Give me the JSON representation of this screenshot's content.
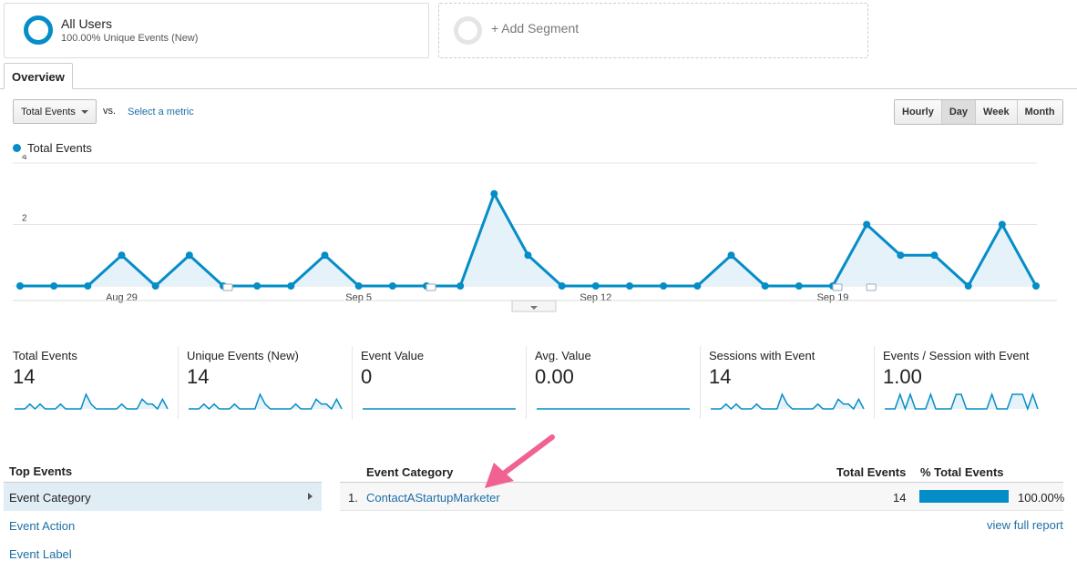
{
  "segments": {
    "all_users": {
      "title": "All Users",
      "subtitle": "100.00% Unique Events (New)"
    },
    "add_segment": {
      "label": "+ Add Segment"
    }
  },
  "tabs": [
    {
      "label": "Overview"
    }
  ],
  "controls": {
    "metric_select": "Total Events",
    "vs": "vs.",
    "select_metric": "Select a metric",
    "time_buttons": [
      "Hourly",
      "Day",
      "Week",
      "Month"
    ],
    "active_time": "Day"
  },
  "chart_data": {
    "type": "area",
    "series": [
      {
        "name": "Total Events",
        "values": [
          0,
          0,
          0,
          1,
          0,
          1,
          0,
          0,
          0,
          1,
          0,
          0,
          0,
          0,
          3,
          1,
          0,
          0,
          0,
          0,
          0,
          1,
          0,
          0,
          0,
          2,
          1,
          1,
          0,
          2,
          0
        ]
      }
    ],
    "x_tick_labels": [
      {
        "index": 3,
        "label": "Aug 29"
      },
      {
        "index": 10,
        "label": "Sep 5"
      },
      {
        "index": 17,
        "label": "Sep 12"
      },
      {
        "index": 24,
        "label": "Sep 19"
      }
    ],
    "y_tick_labels": [
      "2",
      "4"
    ],
    "ylim": [
      0,
      4
    ],
    "grid": true,
    "color": "#058dc7",
    "fill_color": "#e6f2f9",
    "annotation_indices": [
      6,
      12,
      24,
      25
    ]
  },
  "scorecards": [
    {
      "label": "Total Events",
      "value": "14",
      "spark": [
        0,
        0,
        0,
        1,
        0,
        1,
        0,
        0,
        0,
        1,
        0,
        0,
        0,
        0,
        3,
        1,
        0,
        0,
        0,
        0,
        0,
        1,
        0,
        0,
        0,
        2,
        1,
        1,
        0,
        2,
        0
      ]
    },
    {
      "label": "Unique Events (New)",
      "value": "14",
      "spark": [
        0,
        0,
        0,
        1,
        0,
        1,
        0,
        0,
        0,
        1,
        0,
        0,
        0,
        0,
        3,
        1,
        0,
        0,
        0,
        0,
        0,
        1,
        0,
        0,
        0,
        2,
        1,
        1,
        0,
        2,
        0
      ]
    },
    {
      "label": "Event Value",
      "value": "0",
      "spark": [
        0,
        0,
        0,
        0,
        0,
        0,
        0,
        0,
        0,
        0,
        0,
        0,
        0,
        0,
        0,
        0,
        0,
        0,
        0,
        0,
        0,
        0,
        0,
        0,
        0,
        0,
        0,
        0,
        0,
        0,
        0
      ]
    },
    {
      "label": "Avg. Value",
      "value": "0.00",
      "spark": [
        0,
        0,
        0,
        0,
        0,
        0,
        0,
        0,
        0,
        0,
        0,
        0,
        0,
        0,
        0,
        0,
        0,
        0,
        0,
        0,
        0,
        0,
        0,
        0,
        0,
        0,
        0,
        0,
        0,
        0,
        0
      ]
    },
    {
      "label": "Sessions with Event",
      "value": "14",
      "spark": [
        0,
        0,
        0,
        1,
        0,
        1,
        0,
        0,
        0,
        1,
        0,
        0,
        0,
        0,
        3,
        1,
        0,
        0,
        0,
        0,
        0,
        1,
        0,
        0,
        0,
        2,
        1,
        1,
        0,
        2,
        0
      ]
    },
    {
      "label": "Events / Session with Event",
      "value": "1.00",
      "spark": [
        0,
        0,
        0,
        1,
        0,
        1,
        0,
        0,
        0,
        1,
        0,
        0,
        0,
        0,
        1,
        1,
        0,
        0,
        0,
        0,
        0,
        1,
        0,
        0,
        0,
        1,
        1,
        1,
        0,
        1,
        0
      ]
    }
  ],
  "top_events": {
    "heading": "Top Events",
    "items": [
      "Event Category",
      "Event Action",
      "Event Label"
    ]
  },
  "table": {
    "headers": {
      "category": "Event Category",
      "total": "Total Events",
      "pct": "% Total Events"
    },
    "rows": [
      {
        "index": "1.",
        "category": "ContactAStartupMarketer",
        "total": "14",
        "pct": "100.00%",
        "pct_value": 1.0
      }
    ],
    "view_full_report": "view full report"
  }
}
